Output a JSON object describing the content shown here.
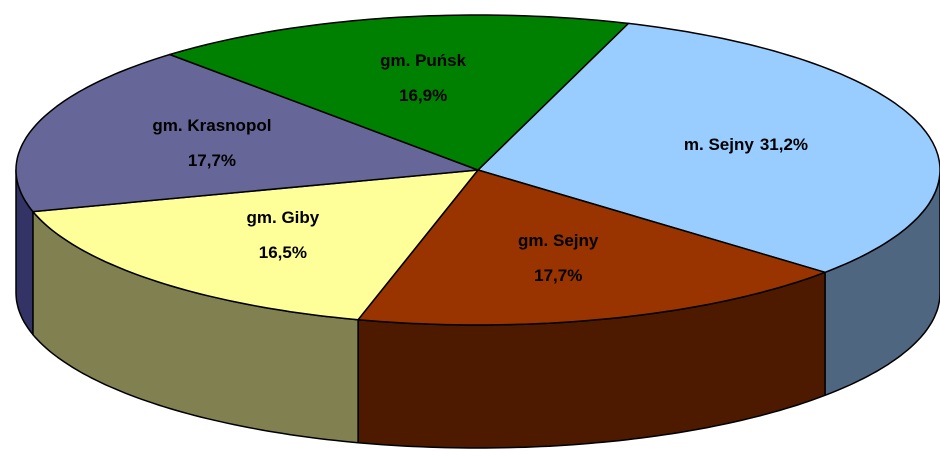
{
  "chart_data": {
    "type": "pie3d",
    "categories": [
      "m. Sejny",
      "gm. Sejny",
      "gm. Giby",
      "gm. Krasnopol",
      "gm. Puńsk"
    ],
    "values": [
      31.2,
      17.7,
      16.5,
      17.7,
      16.9
    ],
    "value_labels": [
      "31,2%",
      "17,7%",
      "16,5%",
      "17,7%",
      "16,9%"
    ],
    "colors": [
      "#99ccff",
      "#993300",
      "#ffff99",
      "#666699",
      "#008000"
    ],
    "side_colors": [
      "#4f6680",
      "#4d1a00",
      "#808050",
      "#333366",
      "#004000"
    ]
  }
}
